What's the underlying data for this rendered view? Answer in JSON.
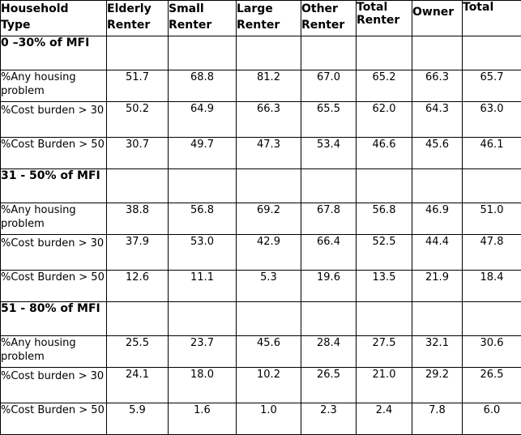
{
  "table": {
    "headers": [
      {
        "line1": "Household",
        "line2": "Type"
      },
      {
        "line1": "Elderly",
        "line2": "Renter"
      },
      {
        "line1": "Small",
        "line2": "Renter"
      },
      {
        "line1": "Large",
        "line2": "Renter"
      },
      {
        "line1": "Other",
        "line2": "Renter"
      },
      {
        "line1": "Total",
        "line2": "Renter"
      },
      {
        "line1": "Owner",
        "line2": ""
      },
      {
        "line1": "Total",
        "line2": ""
      }
    ],
    "sections": [
      {
        "label": "0 –30% of MFI",
        "rows": [
          {
            "label": "%Any housing problem",
            "values": [
              "51.7",
              "68.8",
              "81.2",
              "67.0",
              "65.2",
              "66.3",
              "65.7"
            ]
          },
          {
            "label": "%Cost burden > 30",
            "values": [
              "50.2",
              "64.9",
              "66.3",
              "65.5",
              "62.0",
              "64.3",
              "63.0"
            ]
          },
          {
            "label": "%Cost Burden > 50",
            "values": [
              "30.7",
              "49.7",
              "47.3",
              "53.4",
              "46.6",
              "45.6",
              "46.1"
            ]
          }
        ]
      },
      {
        "label": "31 - 50% of MFI",
        "rows": [
          {
            "label": "%Any housing problem",
            "values": [
              "38.8",
              "56.8",
              "69.2",
              "67.8",
              "56.8",
              "46.9",
              "51.0"
            ]
          },
          {
            "label": "%Cost burden > 30",
            "values": [
              "37.9",
              "53.0",
              "42.9",
              "66.4",
              "52.5",
              "44.4",
              "47.8"
            ]
          },
          {
            "label": "%Cost Burden > 50",
            "values": [
              "12.6",
              "11.1",
              "5.3",
              "19.6",
              "13.5",
              "21.9",
              "18.4"
            ]
          }
        ]
      },
      {
        "label": "51 - 80% of MFI",
        "rows": [
          {
            "label": "%Any housing problem",
            "values": [
              "25.5",
              "23.7",
              "45.6",
              "28.4",
              "27.5",
              "32.1",
              "30.6"
            ]
          },
          {
            "label": "%Cost burden > 30",
            "values": [
              "24.1",
              "18.0",
              "10.2",
              "26.5",
              "21.0",
              "29.2",
              "26.5"
            ]
          },
          {
            "label": "%Cost Burden > 50",
            "values": [
              "5.9",
              "1.6",
              "1.0",
              "2.3",
              "2.4",
              "7.8",
              "6.0"
            ]
          }
        ]
      }
    ]
  }
}
